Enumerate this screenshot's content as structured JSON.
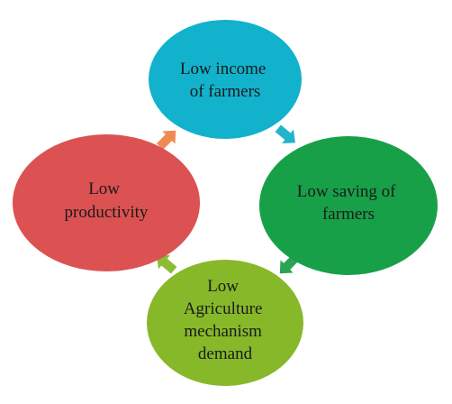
{
  "diagram": {
    "nodes": [
      {
        "id": "low-income",
        "lines": [
          "Low income",
          "of farmers"
        ],
        "color": "#12B2CC"
      },
      {
        "id": "low-saving",
        "lines": [
          "Low saving of",
          "farmers"
        ],
        "color": "#18A048"
      },
      {
        "id": "low-agri-demand",
        "lines": [
          "Low",
          "Agriculture",
          "mechanism",
          "demand"
        ],
        "color": "#86B82A"
      },
      {
        "id": "low-productivity",
        "lines": [
          "Low",
          "productivity"
        ],
        "color": "#DC5252"
      }
    ],
    "edges": [
      {
        "from": "low-income",
        "to": "low-saving",
        "color": "#22B4CC"
      },
      {
        "from": "low-saving",
        "to": "low-agri-demand",
        "color": "#2AA454"
      },
      {
        "from": "low-agri-demand",
        "to": "low-productivity",
        "color": "#8CBC34"
      },
      {
        "from": "low-productivity",
        "to": "low-income",
        "color": "#F08A55"
      }
    ]
  }
}
